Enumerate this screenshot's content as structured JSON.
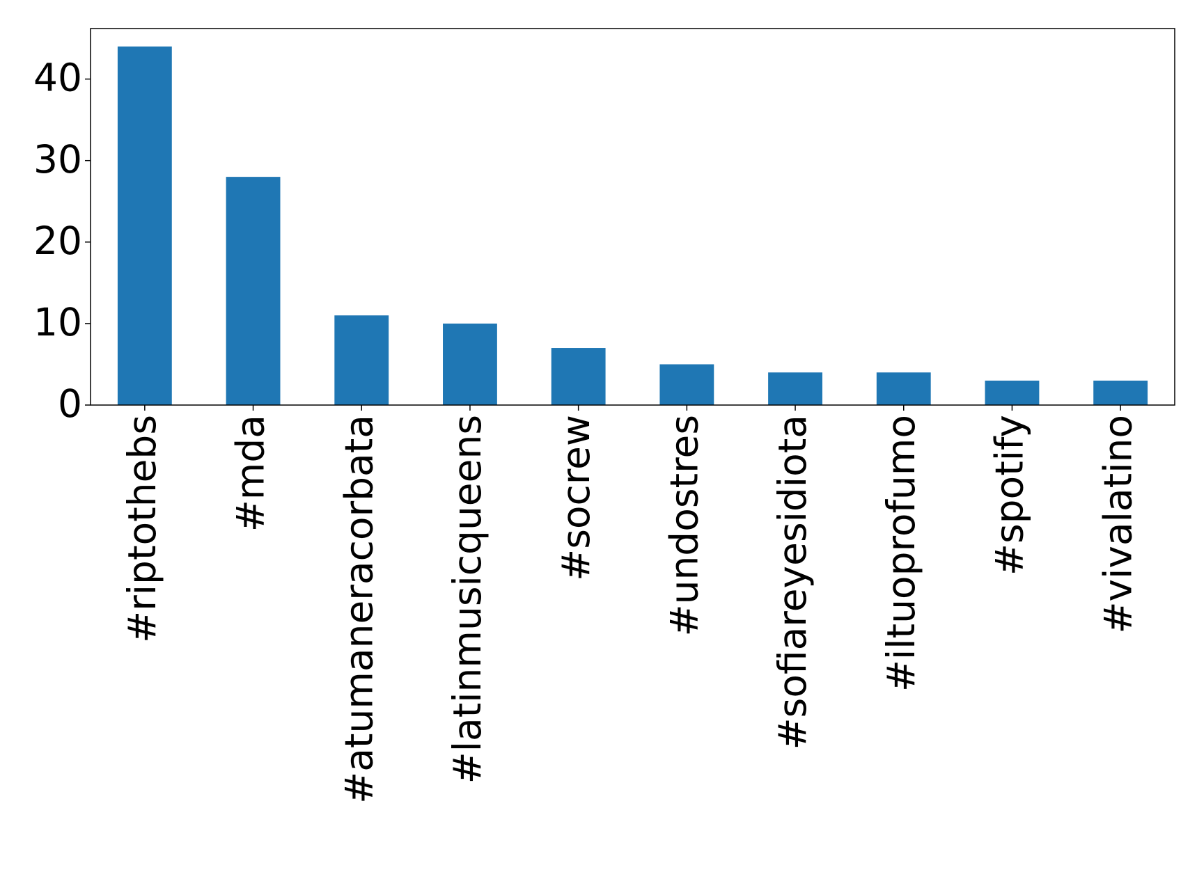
{
  "chart_data": {
    "type": "bar",
    "categories": [
      "#riptothebs",
      "#mda",
      "#atumaneracorbata",
      "#latinmusicqueens",
      "#socrew",
      "#undostres",
      "#sofiareyesidiota",
      "#iltuoprofumo",
      "#spotify",
      "#vivalatino"
    ],
    "values": [
      44,
      28,
      11,
      10,
      7,
      5,
      4,
      4,
      3,
      3
    ],
    "color": "#1f77b4",
    "ylim": [
      0,
      46.2
    ],
    "yticks": [
      0,
      10,
      20,
      30,
      40
    ],
    "grid": false
  }
}
